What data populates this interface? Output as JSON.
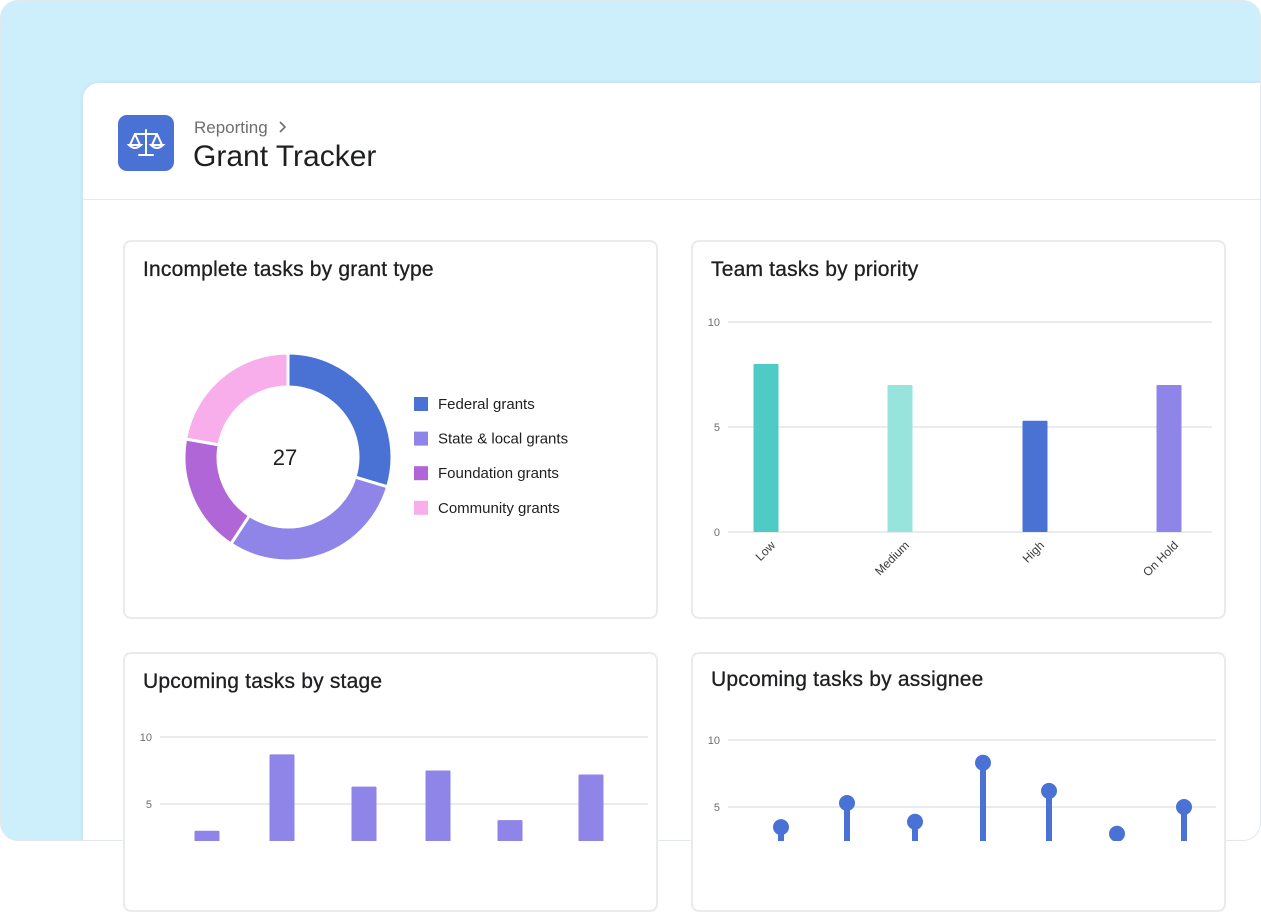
{
  "header": {
    "breadcrumb": "Reporting",
    "title": "Grant Tracker"
  },
  "chart_data": [
    {
      "type": "donut",
      "title": "Incomplete tasks by grant type",
      "total": 27,
      "categories": [
        "Federal grants",
        "State & local grants",
        "Foundation grants",
        "Community grants"
      ],
      "values": [
        8,
        8,
        5,
        6
      ],
      "colors": [
        "#4a72d4",
        "#8f84e8",
        "#b066d6",
        "#f7aeea"
      ]
    },
    {
      "type": "bar",
      "title": "Team tasks by priority",
      "categories": [
        "Low",
        "Medium",
        "High",
        "On Hold"
      ],
      "values": [
        8,
        7,
        5.3,
        7
      ],
      "colors": [
        "#4ecbc4",
        "#96e4dc",
        "#4a72d4",
        "#8f84e8"
      ],
      "ylim": [
        0,
        10
      ],
      "yticks": [
        0,
        5,
        10
      ],
      "grid": true
    },
    {
      "type": "bar",
      "title": "Upcoming tasks by stage",
      "values": [
        3,
        8.7,
        6.3,
        7.5,
        3.8,
        7.2
      ],
      "color": "#8f84e8",
      "ylim": [
        0,
        10
      ],
      "yticks": [
        5,
        10
      ],
      "grid": true
    },
    {
      "type": "lollipop",
      "title": "Upcoming tasks by assignee",
      "values": [
        3.5,
        5.3,
        3.9,
        8.3,
        6.2,
        3,
        5
      ],
      "color": "#4a72d4",
      "ylim": [
        0,
        10
      ],
      "yticks": [
        5,
        10
      ],
      "grid": true
    }
  ]
}
